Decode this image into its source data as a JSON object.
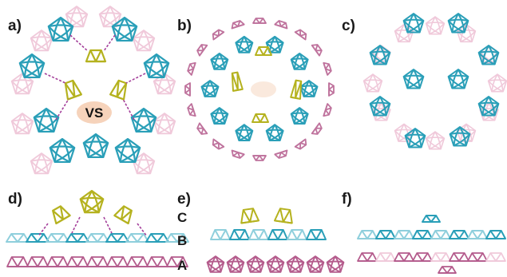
{
  "panels": [
    "a)",
    "b)",
    "c)",
    "d)",
    "e)",
    "f)"
  ],
  "center_label": "VS",
  "layer_labels": [
    "C",
    "B",
    "A"
  ],
  "colors": {
    "cyan": "#2a9fb8",
    "cyan_light": "#8fcfdc",
    "olive": "#b5b21f",
    "olive_light": "#dad77a",
    "pink": "#d97aa5",
    "pink_faint": "#f0c9da",
    "mauve": "#b45b8c",
    "vs_blob": "#f6d3bb",
    "dash": "#a43f9a"
  },
  "icons": [
    "pentagonal-cage-icon",
    "bowl-fragment-icon"
  ]
}
